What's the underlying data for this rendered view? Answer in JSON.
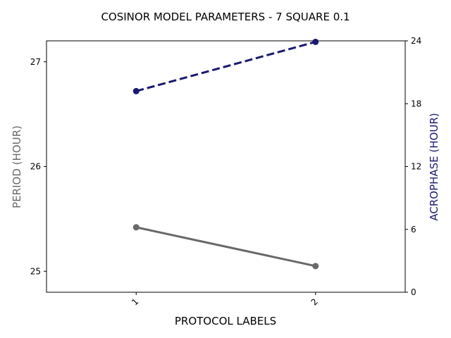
{
  "chart_data": {
    "type": "line",
    "title": "COSINOR MODEL PARAMETERS - 7 SQUARE 0.1",
    "xlabel": "PROTOCOL LABELS",
    "categories": [
      "1",
      "2"
    ],
    "xlim": [
      0.5,
      2.5
    ],
    "y_left": {
      "label": "PERIOD (HOUR)",
      "ylim": [
        24.8,
        27.2
      ],
      "ticks": [
        25,
        26,
        27
      ],
      "tick_labels": [
        "25",
        "26",
        "27"
      ],
      "color": "#696969"
    },
    "y_right": {
      "label": "ACROPHASE (HOUR)",
      "ylim": [
        0,
        24
      ],
      "ticks": [
        0,
        6,
        12,
        18,
        24
      ],
      "tick_labels": [
        "0",
        "6",
        "12",
        "18",
        "24"
      ],
      "color": "#191970"
    },
    "series": [
      {
        "axis": "left",
        "values": [
          25.42,
          25.05
        ],
        "color": "#696969",
        "style": "solid"
      },
      {
        "axis": "right",
        "values": [
          19.2,
          23.9
        ],
        "color": "#191970",
        "style": "dashed"
      }
    ],
    "grid": false
  }
}
